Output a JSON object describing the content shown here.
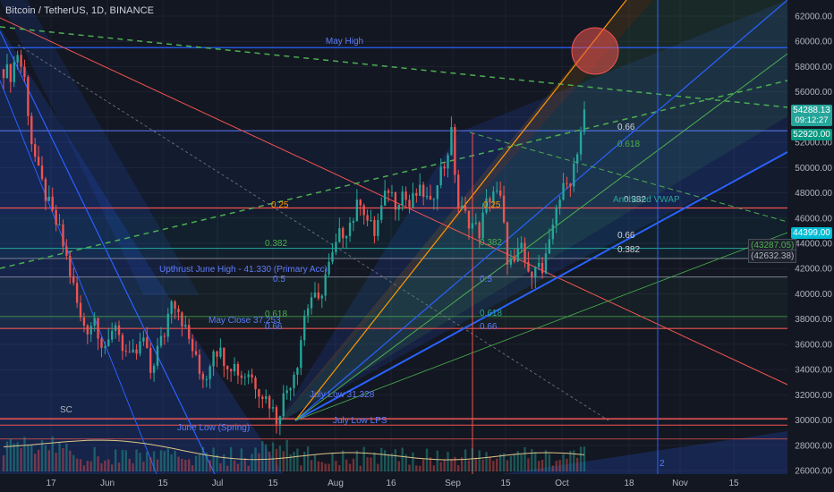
{
  "header": {
    "symbol_title": "Bitcoin / TetherUS, 1D, BINANCE"
  },
  "colors": {
    "background": "#131722",
    "grid": "#1e2230",
    "bull": "#26a69a",
    "bear": "#ef5350",
    "fib_blue": "#2962ff",
    "fib_green": "#4caf50",
    "fib_orange": "#ff9800",
    "price_tag": "#26a69a",
    "price_tag_current": "#ffffff"
  },
  "price_axis": {
    "ticks": [
      "62000.00",
      "60000.00",
      "58000.00",
      "56000.00",
      "54000.00",
      "52000.00",
      "50000.00",
      "48000.00",
      "46000.00",
      "44000.00",
      "42000.00",
      "40000.00",
      "38000.00",
      "36000.00",
      "34000.00",
      "32000.00",
      "30000.00",
      "28000.00",
      "26000.00"
    ],
    "tag_current": {
      "price": "54288.13",
      "countdown": "09:12:27"
    },
    "tag_high": "52920.00",
    "tag_cyan": "44399.00",
    "side_tag_1": "(43287.05)",
    "side_tag_2": "(42632.38)"
  },
  "time_axis": {
    "ticks": [
      "17",
      "Jun",
      "15",
      "Jul",
      "15",
      "Aug",
      "16",
      "Sep",
      "15",
      "Oct",
      "18",
      "Nov",
      "15"
    ]
  },
  "annotations": {
    "may_high": "May High",
    "upthrust": "Upthrust June High - 41.330 (Primary Acc)",
    "may_close": "May Close 37.253",
    "july_low_lps": "July Low LPS",
    "june_low_spring": "June Low (Spring)",
    "july_low_3": "July Low 31.328",
    "sc": "SC",
    "fib_025_left": "0.25",
    "fib_0382_left": "0.382",
    "fib_05_left": "0.5",
    "fib_0618_left": "0.618",
    "fib_066_left": "0.66",
    "fib_025_mid": "0.25",
    "fib_0382_mid": "0.382",
    "fib_05_mid": "0.5",
    "fib_0618_mid": "0.618",
    "fib_066_mid": "0.66",
    "fib_066_right": "0.66",
    "fib_0618_right": "0.618",
    "fib_0382_right_a": "0.382",
    "fib_066_right_b": "0.66",
    "fib_0382_right_b": "0.382",
    "vwap_label": "Anchored VWAP",
    "small_label_2": "2"
  },
  "chart_data": {
    "type": "candlestick",
    "title": "Bitcoin / TetherUS, 1D, BINANCE",
    "ylim": [
      26000,
      63000
    ],
    "y_ticks": [
      62000,
      60000,
      58000,
      56000,
      54000,
      52000,
      50000,
      48000,
      46000,
      44000,
      42000,
      40000,
      38000,
      36000,
      34000,
      32000,
      30000,
      28000,
      26000
    ],
    "x_ticks": [
      "17",
      "Jun",
      "15",
      "Jul",
      "15",
      "Aug",
      "16",
      "Sep",
      "15",
      "Oct",
      "18",
      "Nov",
      "15"
    ],
    "close_path": [
      [
        0,
        57800
      ],
      [
        2,
        57400
      ],
      [
        4,
        59100
      ],
      [
        6,
        57000
      ],
      [
        8,
        52100
      ],
      [
        10,
        49500
      ],
      [
        12,
        47800
      ],
      [
        14,
        46200
      ],
      [
        16,
        44900
      ],
      [
        18,
        42800
      ],
      [
        20,
        40500
      ],
      [
        22,
        37900
      ],
      [
        24,
        37300
      ],
      [
        26,
        38100
      ],
      [
        28,
        36200
      ],
      [
        30,
        35700
      ],
      [
        32,
        37800
      ],
      [
        34,
        35900
      ],
      [
        36,
        34700
      ],
      [
        38,
        35300
      ],
      [
        40,
        36400
      ],
      [
        42,
        33800
      ],
      [
        44,
        35600
      ],
      [
        46,
        36900
      ],
      [
        48,
        39900
      ],
      [
        50,
        38800
      ],
      [
        52,
        37100
      ],
      [
        54,
        35600
      ],
      [
        56,
        33700
      ],
      [
        58,
        33500
      ],
      [
        60,
        35900
      ],
      [
        62,
        35300
      ],
      [
        64,
        34600
      ],
      [
        66,
        34300
      ],
      [
        68,
        33500
      ],
      [
        70,
        33800
      ],
      [
        72,
        32900
      ],
      [
        74,
        32100
      ],
      [
        76,
        31400
      ],
      [
        78,
        30100
      ],
      [
        80,
        31800
      ],
      [
        82,
        33100
      ],
      [
        84,
        34700
      ],
      [
        86,
        38300
      ],
      [
        88,
        39800
      ],
      [
        90,
        39200
      ],
      [
        92,
        41500
      ],
      [
        94,
        42900
      ],
      [
        96,
        44600
      ],
      [
        98,
        45200
      ],
      [
        100,
        46100
      ],
      [
        102,
        47600
      ],
      [
        104,
        45800
      ],
      [
        106,
        44800
      ],
      [
        108,
        46700
      ],
      [
        110,
        48400
      ],
      [
        112,
        47300
      ],
      [
        114,
        48100
      ],
      [
        116,
        46900
      ],
      [
        118,
        47900
      ],
      [
        120,
        48000
      ],
      [
        122,
        46800
      ],
      [
        124,
        49300
      ],
      [
        126,
        50200
      ],
      [
        128,
        52600
      ],
      [
        130,
        46900
      ],
      [
        132,
        46200
      ],
      [
        134,
        45500
      ],
      [
        136,
        44900
      ],
      [
        138,
        47100
      ],
      [
        140,
        48200
      ],
      [
        142,
        47400
      ],
      [
        144,
        42900
      ],
      [
        146,
        42100
      ],
      [
        148,
        43900
      ],
      [
        150,
        41200
      ],
      [
        152,
        42700
      ],
      [
        154,
        41600
      ],
      [
        156,
        43700
      ],
      [
        158,
        47200
      ],
      [
        160,
        48200
      ],
      [
        162,
        49100
      ],
      [
        164,
        51500
      ],
      [
        166,
        54288
      ]
    ],
    "current_price": 54288.13,
    "levels": {
      "may_high": 59500,
      "may_close": 37253,
      "upthrust_june_high": 41330,
      "july_low": 29300
    }
  }
}
